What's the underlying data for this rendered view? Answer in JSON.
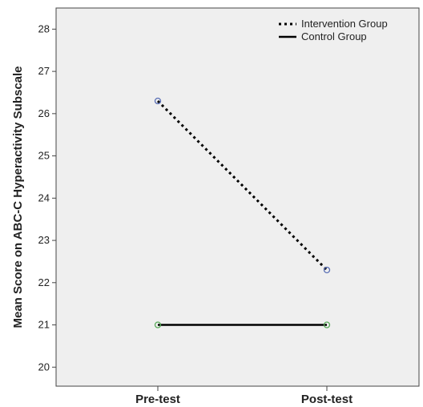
{
  "chart_data": {
    "type": "line",
    "categories": [
      "Pre-test",
      "Post-test"
    ],
    "ylabel": "Mean Score on ABC-C Hyperactivity Subscale",
    "xlabel": "",
    "ylim": [
      19.55,
      28.5
    ],
    "yticks": [
      20,
      21,
      22,
      23,
      24,
      25,
      26,
      27,
      28
    ],
    "grid": false,
    "legend_position": "top-right",
    "plot_background": "#efefef",
    "series": [
      {
        "name": "Intervention Group",
        "values": [
          26.3,
          22.3
        ],
        "line_style": "dotted",
        "color": "#000000",
        "marker_color": "#5a6fb5"
      },
      {
        "name": "Control Group",
        "values": [
          21.0,
          21.0
        ],
        "line_style": "solid",
        "color": "#000000",
        "marker_color": "#5aaa5a"
      }
    ]
  }
}
